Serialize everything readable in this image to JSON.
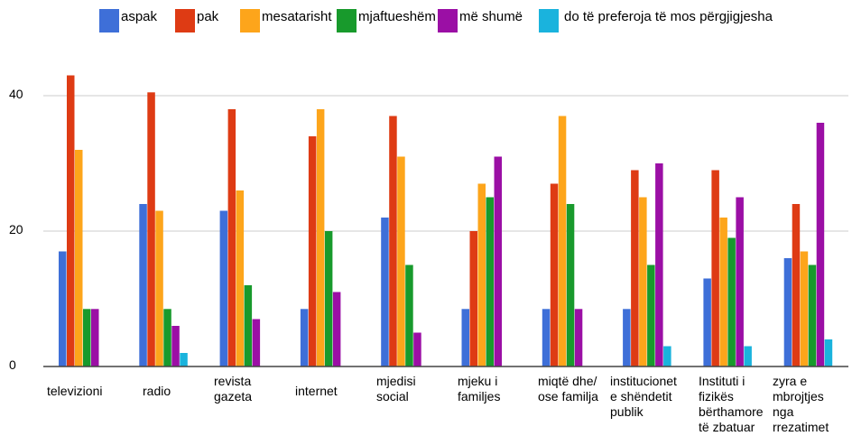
{
  "chart_data": {
    "type": "bar",
    "title": "",
    "xlabel": "",
    "ylabel": "",
    "ylim": [
      0,
      43
    ],
    "yticks": [
      0,
      20,
      40
    ],
    "grid": true,
    "legend_position": "top",
    "categories": [
      "televizioni",
      "radio",
      "revista\ngazeta",
      "internet",
      "mjedisi\nsocial",
      "mjeku i\nfamiljes",
      "miqtë dhe/\nose familja",
      "institucionet\ne shëndetit\npublik",
      "Instituti i\nfizikës\nbërthamore\ntë zbatuar",
      "zyra e\nmbrojtjes\nnga\nrrezatimet"
    ],
    "series": [
      {
        "name": "aspak",
        "color": "#3e6fd8",
        "values": [
          17,
          24,
          23,
          8.5,
          22,
          8.5,
          8.5,
          8.5,
          13,
          16
        ]
      },
      {
        "name": "pak",
        "color": "#de3b14",
        "values": [
          43,
          40.5,
          38,
          34,
          37,
          20,
          27,
          29,
          29,
          24
        ]
      },
      {
        "name": "mesatarisht",
        "color": "#fda51b",
        "values": [
          32,
          23,
          26,
          38,
          31,
          27,
          37,
          25,
          22,
          17
        ]
      },
      {
        "name": "mjaftueshëm",
        "color": "#189a2c",
        "values": [
          8.5,
          8.5,
          12,
          20,
          15,
          25,
          24,
          15,
          19,
          15
        ]
      },
      {
        "name": "më shumë",
        "color": "#9b0fa5",
        "values": [
          8.5,
          6,
          7,
          11,
          5,
          31,
          8.5,
          30,
          25,
          36
        ]
      },
      {
        "name": "do të preferoja të mos përgjigjesha",
        "color": "#1ab3dd",
        "values": [
          0,
          2,
          0,
          0,
          0,
          0,
          0,
          3,
          3,
          4
        ]
      }
    ]
  }
}
